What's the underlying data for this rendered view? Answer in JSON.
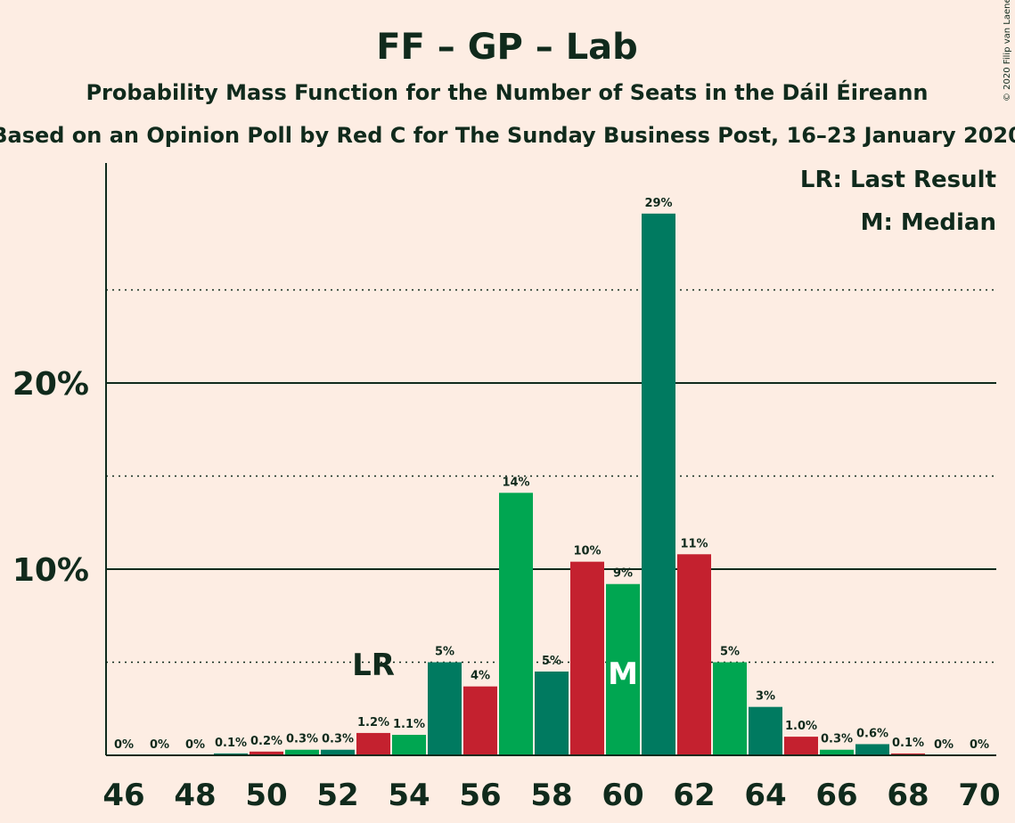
{
  "chart_data": {
    "type": "bar",
    "title": "FF – GP – Lab",
    "subtitle": "Probability Mass Function for the Number of Seats in the Dáil Éireann",
    "subtitle2": "Based on an Opinion Poll by Red C for The Sunday Business Post, 16–23 January 2020",
    "copyright": "© 2020 Filip van Laenen",
    "legend": {
      "placement": "top-right",
      "items": [
        "LR: Last Result",
        "M: Median"
      ]
    },
    "ylim": [
      0,
      31.8
    ],
    "yticks": [
      {
        "value": 10,
        "label": "10%",
        "style": "solid"
      },
      {
        "value": 20,
        "label": "20%",
        "style": "solid"
      }
    ],
    "dotted_gridlines": [
      5,
      15,
      25
    ],
    "x_ticks": [
      "46",
      "48",
      "50",
      "52",
      "54",
      "56",
      "58",
      "60",
      "62",
      "64",
      "66",
      "68",
      "70"
    ],
    "colors": {
      "FF": "#007a60",
      "Lab": "#c4212f",
      "GP": "#00a651",
      "background": "#fdede3",
      "text": "#102a1c"
    },
    "last_result": {
      "x": 53,
      "label": "LR"
    },
    "median": {
      "x": 60,
      "label": "M"
    },
    "bars": [
      {
        "x": 46,
        "value": 0,
        "label": "0%",
        "color": "FF"
      },
      {
        "x": 47,
        "value": 0,
        "label": "0%",
        "color": "Lab"
      },
      {
        "x": 48,
        "value": 0,
        "label": "0%",
        "color": "GP"
      },
      {
        "x": 49,
        "value": 0.1,
        "label": "0.1%",
        "color": "FF"
      },
      {
        "x": 50,
        "value": 0.2,
        "label": "0.2%",
        "color": "Lab"
      },
      {
        "x": 51,
        "value": 0.3,
        "label": "0.3%",
        "color": "GP"
      },
      {
        "x": 52,
        "value": 0.3,
        "label": "0.3%",
        "color": "FF"
      },
      {
        "x": 53,
        "value": 1.2,
        "label": "1.2%",
        "color": "Lab"
      },
      {
        "x": 54,
        "value": 1.1,
        "label": "1.1%",
        "color": "GP"
      },
      {
        "x": 55,
        "value": 5.0,
        "label": "5%",
        "color": "FF"
      },
      {
        "x": 56,
        "value": 3.7,
        "label": "4%",
        "color": "Lab"
      },
      {
        "x": 57,
        "value": 14.1,
        "label": "14%",
        "color": "GP"
      },
      {
        "x": 58,
        "value": 4.5,
        "label": "5%",
        "color": "FF"
      },
      {
        "x": 59,
        "value": 10.4,
        "label": "10%",
        "color": "Lab"
      },
      {
        "x": 60,
        "value": 9.2,
        "label": "9%",
        "color": "GP"
      },
      {
        "x": 61,
        "value": 29.1,
        "label": "29%",
        "color": "FF"
      },
      {
        "x": 62,
        "value": 10.8,
        "label": "11%",
        "color": "Lab"
      },
      {
        "x": 63,
        "value": 5.0,
        "label": "5%",
        "color": "GP"
      },
      {
        "x": 64,
        "value": 2.6,
        "label": "3%",
        "color": "FF"
      },
      {
        "x": 65,
        "value": 1.0,
        "label": "1.0%",
        "color": "Lab"
      },
      {
        "x": 66,
        "value": 0.3,
        "label": "0.3%",
        "color": "GP"
      },
      {
        "x": 67,
        "value": 0.6,
        "label": "0.6%",
        "color": "FF"
      },
      {
        "x": 68,
        "value": 0.1,
        "label": "0.1%",
        "color": "Lab"
      },
      {
        "x": 69,
        "value": 0,
        "label": "0%",
        "color": "GP"
      },
      {
        "x": 70,
        "value": 0,
        "label": "0%",
        "color": "FF"
      }
    ]
  }
}
